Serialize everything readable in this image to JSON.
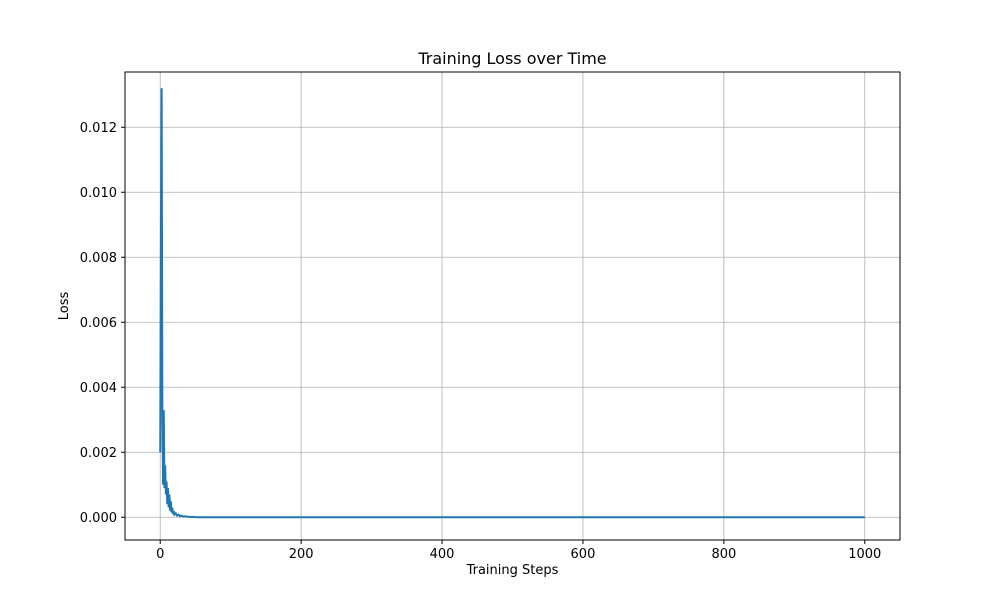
{
  "chart_data": {
    "type": "line",
    "title": "Training Loss over Time",
    "xlabel": "Training Steps",
    "ylabel": "Loss",
    "xlim": [
      -50,
      1050
    ],
    "ylim": [
      -0.0007,
      0.0137
    ],
    "xticks": [
      0,
      200,
      400,
      600,
      800,
      1000
    ],
    "xtick_labels": [
      "0",
      "200",
      "400",
      "600",
      "800",
      "1000"
    ],
    "yticks": [
      0.0,
      0.002,
      0.004,
      0.006,
      0.008,
      0.01,
      0.012
    ],
    "ytick_labels": [
      "0.000",
      "0.002",
      "0.004",
      "0.006",
      "0.008",
      "0.010",
      "0.012"
    ],
    "grid": true,
    "line_color": "#1f77b4",
    "series": [
      {
        "x": [
          0,
          1,
          2,
          3,
          4,
          5,
          6,
          7,
          8,
          9,
          10,
          11,
          12,
          13,
          14,
          15,
          16,
          17,
          18,
          19,
          20,
          22,
          24,
          26,
          28,
          30,
          33,
          36,
          40,
          45,
          50,
          60,
          80,
          100,
          200,
          300,
          400,
          500,
          600,
          700,
          800,
          900,
          1000
        ],
        "y": [
          0.002,
          0.009,
          0.0132,
          0.0035,
          0.001,
          0.0033,
          0.0009,
          0.0016,
          0.0007,
          0.0011,
          0.0004,
          0.0009,
          0.0003,
          0.0007,
          0.0002,
          0.0005,
          0.00015,
          0.0003,
          0.0001,
          0.0002,
          8e-05,
          0.00012,
          5e-05,
          8e-05,
          3e-05,
          5e-05,
          2e-05,
          3e-05,
          1e-05,
          1e-05,
          5e-06,
          0.0,
          0.0,
          0.0,
          0.0,
          0.0,
          0.0,
          0.0,
          0.0,
          0.0,
          0.0,
          0.0,
          0.0
        ]
      }
    ]
  }
}
